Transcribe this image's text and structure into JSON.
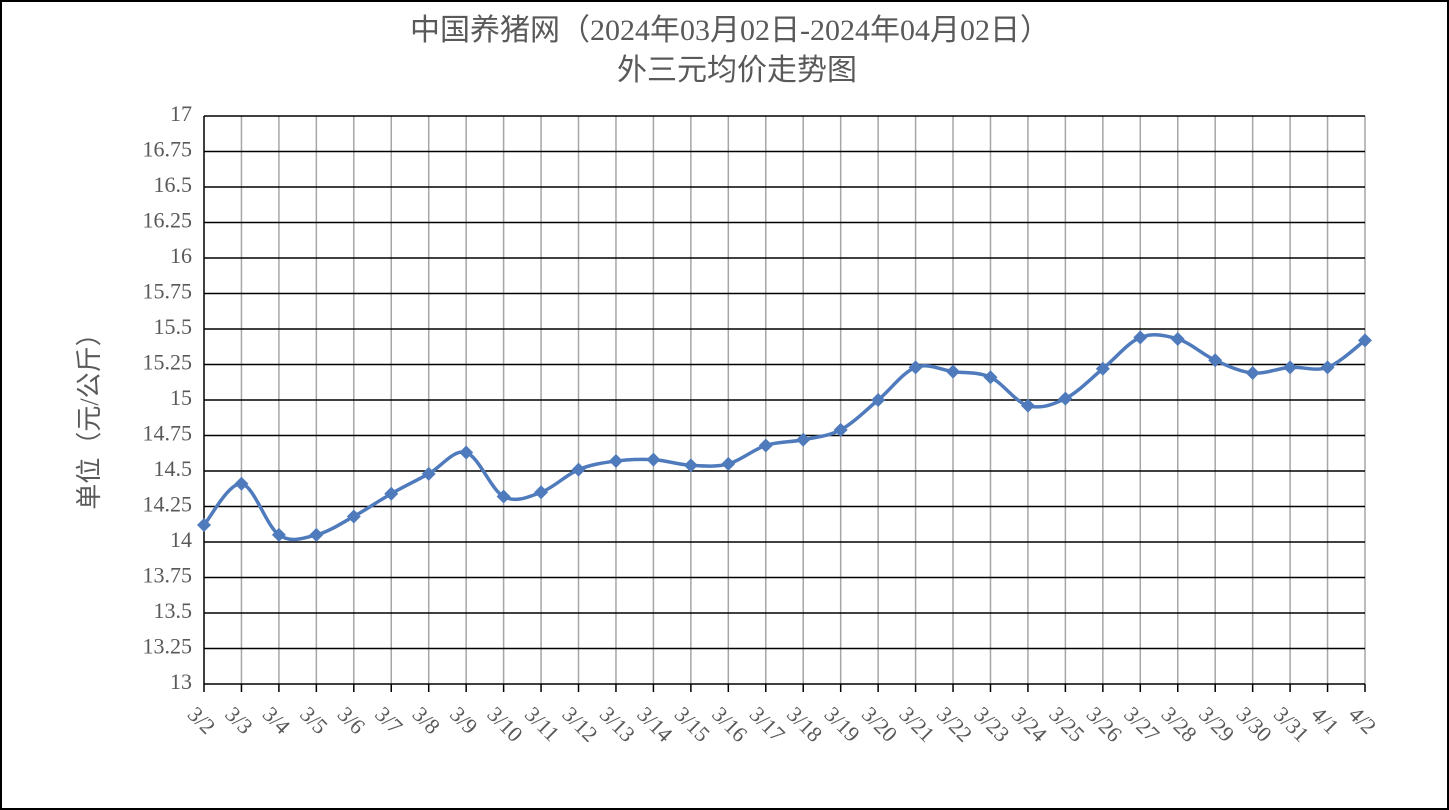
{
  "chart_data": {
    "type": "line",
    "title": "中国养猪网（2024年03月02日-2024年04月02日）",
    "subtitle": "外三元均价走势图",
    "y_label": "单位（元/公斤）",
    "categories": [
      "3/2",
      "3/3",
      "3/4",
      "3/5",
      "3/6",
      "3/7",
      "3/8",
      "3/9",
      "3/10",
      "3/11",
      "3/12",
      "3/13",
      "3/14",
      "3/15",
      "3/16",
      "3/17",
      "3/18",
      "3/19",
      "3/20",
      "3/21",
      "3/22",
      "3/23",
      "3/24",
      "3/25",
      "3/26",
      "3/27",
      "3/28",
      "3/29",
      "3/30",
      "3/31",
      "4/1",
      "4/2"
    ],
    "values": [
      14.12,
      14.41,
      14.05,
      14.05,
      14.18,
      14.34,
      14.48,
      14.63,
      14.32,
      14.35,
      14.51,
      14.57,
      14.58,
      14.54,
      14.55,
      14.68,
      14.72,
      14.79,
      15.0,
      15.23,
      15.2,
      15.16,
      14.96,
      15.01,
      15.22,
      15.44,
      15.43,
      15.28,
      15.19,
      15.23,
      15.23,
      15.42
    ],
    "color": "#4f7bbd",
    "ylim": [
      13,
      17
    ],
    "yticks": [
      13,
      13.25,
      13.5,
      13.75,
      14,
      14.25,
      14.5,
      14.75,
      15,
      15.25,
      15.5,
      15.75,
      16,
      16.25,
      16.5,
      16.75,
      17
    ],
    "grid": true
  }
}
